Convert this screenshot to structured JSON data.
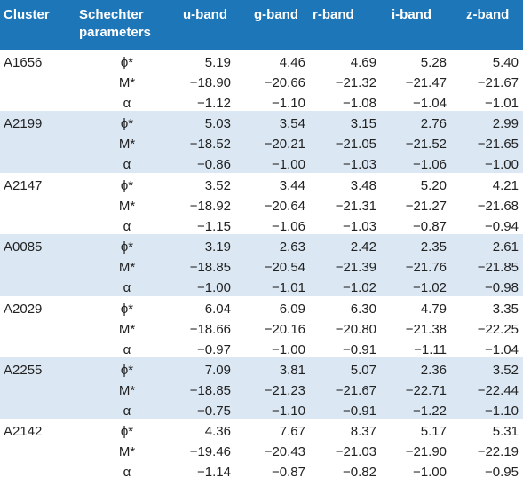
{
  "header": {
    "cluster": "Cluster",
    "schechter": "Schechter\nparameters",
    "u": "u-band",
    "g": "g-band",
    "r": "r-band",
    "i": "i-band",
    "z": "z-band"
  },
  "groups": [
    {
      "cluster": "A1656",
      "rows": [
        {
          "param": "ϕ*",
          "u": "5.19",
          "g": "4.46",
          "r": "4.69",
          "i": "5.28",
          "z": "5.40"
        },
        {
          "param": "M*",
          "u": "−18.90",
          "g": "−20.66",
          "r": "−21.32",
          "i": "−21.47",
          "z": "−21.67"
        },
        {
          "param": "α",
          "u": "−1.12",
          "g": "−1.10",
          "r": "−1.08",
          "i": "−1.04",
          "z": "−1.01"
        }
      ]
    },
    {
      "cluster": "A2199",
      "rows": [
        {
          "param": "ϕ*",
          "u": "5.03",
          "g": "3.54",
          "r": "3.15",
          "i": "2.76",
          "z": "2.99"
        },
        {
          "param": "M*",
          "u": "−18.52",
          "g": "−20.21",
          "r": "−21.05",
          "i": "−21.52",
          "z": "−21.65"
        },
        {
          "param": "α",
          "u": "−0.86",
          "g": "−1.00",
          "r": "−1.03",
          "i": "−1.06",
          "z": "−1.00"
        }
      ]
    },
    {
      "cluster": "A2147",
      "rows": [
        {
          "param": "ϕ*",
          "u": "3.52",
          "g": "3.44",
          "r": "3.48",
          "i": "5.20",
          "z": "4.21"
        },
        {
          "param": "M*",
          "u": "−18.92",
          "g": "−20.64",
          "r": "−21.31",
          "i": "−21.27",
          "z": "−21.68"
        },
        {
          "param": "α",
          "u": "−1.15",
          "g": "−1.06",
          "r": "−1.03",
          "i": "−0.87",
          "z": "−0.94"
        }
      ]
    },
    {
      "cluster": "A0085",
      "rows": [
        {
          "param": "ϕ*",
          "u": "3.19",
          "g": "2.63",
          "r": "2.42",
          "i": "2.35",
          "z": "2.61"
        },
        {
          "param": "M*",
          "u": "−18.85",
          "g": "−20.54",
          "r": "−21.39",
          "i": "−21.76",
          "z": "−21.85"
        },
        {
          "param": "α",
          "u": "−1.00",
          "g": "−1.01",
          "r": "−1.02",
          "i": "−1.02",
          "z": "−0.98"
        }
      ]
    },
    {
      "cluster": "A2029",
      "rows": [
        {
          "param": "ϕ*",
          "u": "6.04",
          "g": "6.09",
          "r": "6.30",
          "i": "4.79",
          "z": "3.35"
        },
        {
          "param": "M*",
          "u": "−18.66",
          "g": "−20.16",
          "r": "−20.80",
          "i": "−21.38",
          "z": "−22.25"
        },
        {
          "param": "α",
          "u": "−0.97",
          "g": "−1.00",
          "r": "−0.91",
          "i": "−1.11",
          "z": "−1.04"
        }
      ]
    },
    {
      "cluster": "A2255",
      "rows": [
        {
          "param": "ϕ*",
          "u": "7.09",
          "g": "3.81",
          "r": "5.07",
          "i": "2.36",
          "z": "3.52"
        },
        {
          "param": "M*",
          "u": "−18.85",
          "g": "−21.23",
          "r": "−21.67",
          "i": "−22.71",
          "z": "−22.44"
        },
        {
          "param": "α",
          "u": "−0.75",
          "g": "−1.10",
          "r": "−0.91",
          "i": "−1.22",
          "z": "−1.10"
        }
      ]
    },
    {
      "cluster": "A2142",
      "rows": [
        {
          "param": "ϕ*",
          "u": "4.36",
          "g": "7.67",
          "r": "8.37",
          "i": "5.17",
          "z": "5.31"
        },
        {
          "param": "M*",
          "u": "−19.46",
          "g": "−20.43",
          "r": "−21.03",
          "i": "−21.90",
          "z": "−22.19"
        },
        {
          "param": "α",
          "u": "−1.14",
          "g": "−0.87",
          "r": "−0.82",
          "i": "−1.00",
          "z": "−0.95"
        }
      ]
    }
  ],
  "colors": {
    "header_bg": "#1d76b8",
    "row_shade": "#dbe8f4"
  }
}
